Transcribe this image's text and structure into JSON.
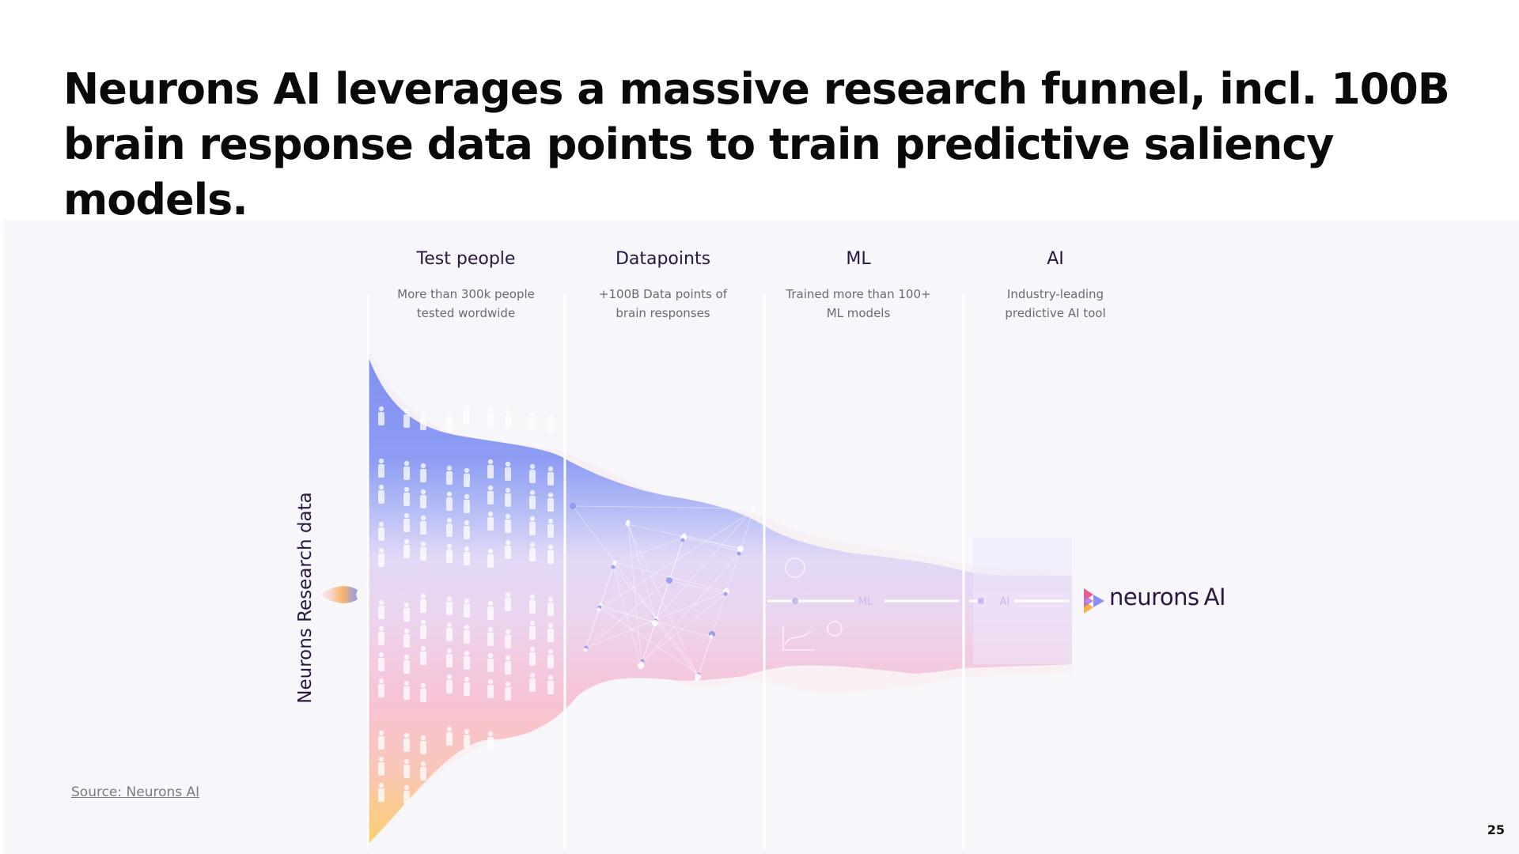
{
  "title_lines": [
    "Neurons AI leverages a massive research funnel, incl. 100B",
    "brain response data points to train predictive saliency models."
  ],
  "stages": [
    {
      "title": "Test people",
      "desc": [
        "More than 300k people",
        "tested wordwide"
      ]
    },
    {
      "title": "Datapoints",
      "desc": [
        "+100B Data points of",
        "brain responses"
      ]
    },
    {
      "title": "ML",
      "desc": [
        "Trained more than 100+",
        "ML models"
      ]
    },
    {
      "title": "AI",
      "desc": [
        "Industry-leading",
        "predictive AI tool"
      ]
    }
  ],
  "axis_label": "Neurons Research data",
  "funnel_labels": {
    "ml": "ML",
    "ai": "AI"
  },
  "logo": {
    "name": "neurons",
    "suffix": "AI",
    "icon": "neurons-logo-icon"
  },
  "source": "Source: Neurons AI",
  "page_number": "25",
  "colors": {
    "title": "#0a0a0a",
    "stage_title": "#2a1640",
    "funnel_top": "#7f8ff2",
    "funnel_mid": "#e7d6f4",
    "funnel_low": "#f7c3d7",
    "funnel_bottom": "#fbd06a"
  }
}
